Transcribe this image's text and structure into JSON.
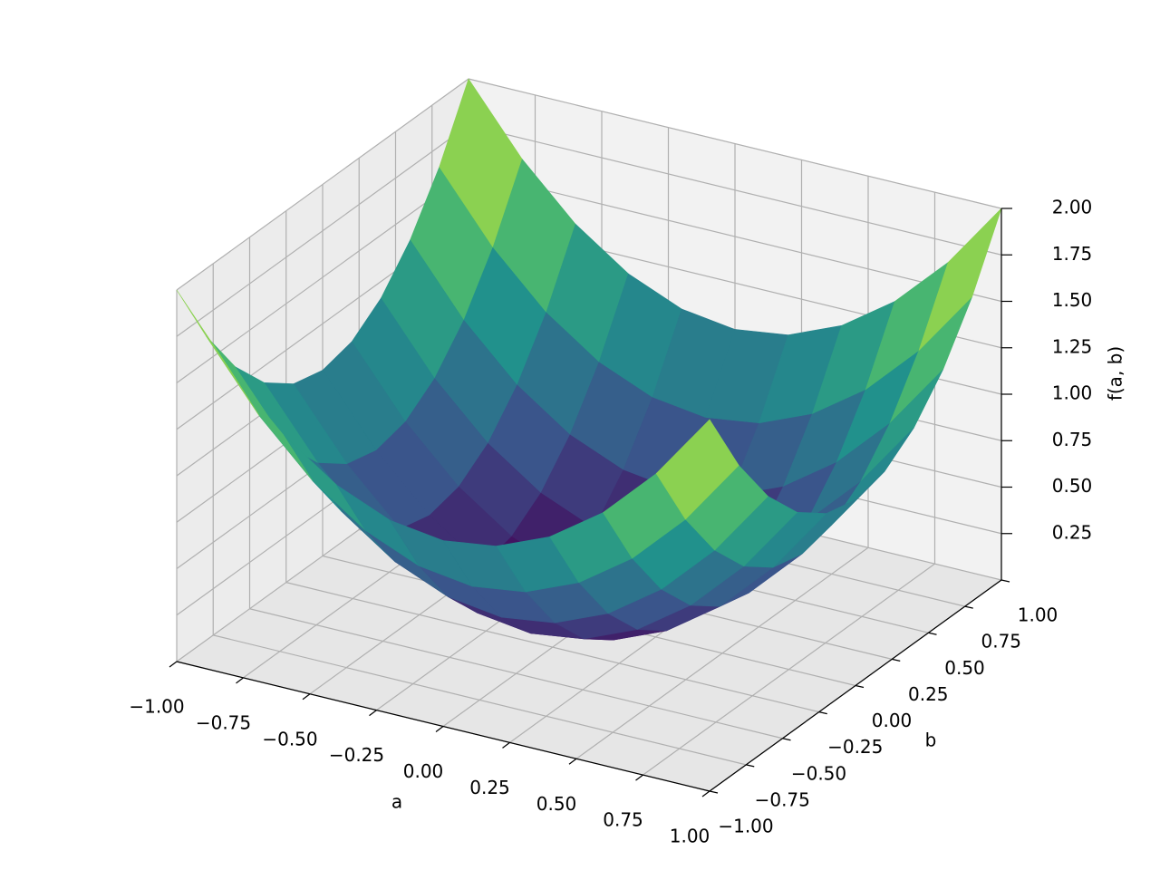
{
  "chart_data": {
    "type": "surface",
    "xlabel": "a",
    "ylabel": "b",
    "zlabel": "f(a, b)",
    "colormap": "viridis",
    "grid": true,
    "xlim": [
      -1,
      1
    ],
    "ylim": [
      -1,
      1
    ],
    "zlim": [
      0,
      2
    ],
    "xticks": [
      {
        "value": -1,
        "label": "−1.00"
      },
      {
        "value": -0.75,
        "label": "−0.75"
      },
      {
        "value": -0.5,
        "label": "−0.50"
      },
      {
        "value": -0.25,
        "label": "−0.25"
      },
      {
        "value": 0,
        "label": "0.00"
      },
      0.25,
      {
        "value": 0.5,
        "label": "0.50"
      },
      0.75,
      {
        "value": 1,
        "label": "1.00"
      }
    ],
    "yticks": [
      {
        "value": -1,
        "label": "−1.00"
      },
      {
        "value": -0.75,
        "label": "−0.75"
      },
      {
        "value": -0.5,
        "label": "−0.50"
      },
      {
        "value": -0.25,
        "label": "−0.25"
      },
      {
        "value": 0,
        "label": "0.00"
      },
      0.25,
      {
        "value": 0.5,
        "label": "0.50"
      },
      0.75,
      {
        "value": 1,
        "label": "1.00"
      }
    ],
    "zticks": [
      0.25,
      {
        "value": 0.5,
        "label": "0.50"
      },
      0.75,
      {
        "value": 1,
        "label": "1.00"
      },
      1.25,
      {
        "value": 1.5,
        "label": "1.50"
      },
      1.75,
      {
        "value": 2,
        "label": "2.00"
      }
    ],
    "x": [
      -1,
      -0.8,
      -0.6,
      -0.4,
      -0.2,
      0,
      0.2,
      0.4,
      0.6,
      0.8,
      1
    ],
    "y": [
      -1,
      -0.8,
      -0.6,
      -0.4,
      -0.2,
      0,
      0.2,
      0.4,
      0.6,
      0.8,
      1
    ],
    "z": [
      [
        2,
        1.64,
        1.36,
        1.16,
        1.04,
        1,
        1.04,
        1.16,
        1.36,
        1.64,
        2
      ],
      [
        1.64,
        1.28,
        1,
        0.8,
        0.68,
        0.64,
        0.68,
        0.8,
        1,
        1.28,
        1.64
      ],
      [
        1.36,
        1,
        0.72,
        0.52,
        0.4,
        0.36,
        0.4,
        0.52,
        0.72,
        1,
        1.36
      ],
      [
        1.16,
        0.8,
        0.52,
        0.32,
        0.2,
        0.16,
        0.2,
        0.32,
        0.52,
        0.8,
        1.16
      ],
      [
        1.04,
        0.68,
        0.4,
        0.2,
        0.08,
        0.04,
        0.08,
        0.2,
        0.4,
        0.68,
        1.04
      ],
      [
        1,
        0.64,
        0.36,
        0.16,
        0.04,
        0,
        0.04,
        0.16,
        0.36,
        0.64,
        1
      ],
      [
        1.04,
        0.68,
        0.4,
        0.2,
        0.08,
        0.04,
        0.08,
        0.2,
        0.4,
        0.68,
        1.04
      ],
      [
        1.16,
        0.8,
        0.52,
        0.32,
        0.2,
        0.16,
        0.2,
        0.32,
        0.52,
        0.8,
        1.16
      ],
      [
        1.36,
        1,
        0.72,
        0.52,
        0.4,
        0.36,
        0.4,
        0.52,
        0.72,
        1,
        1.36
      ],
      [
        1.64,
        1.28,
        1,
        0.8,
        0.68,
        0.64,
        0.68,
        0.8,
        1,
        1.28,
        1.64
      ],
      [
        2,
        1.64,
        1.36,
        1.16,
        1.04,
        1,
        1.04,
        1.16,
        1.36,
        1.64,
        2
      ]
    ]
  }
}
